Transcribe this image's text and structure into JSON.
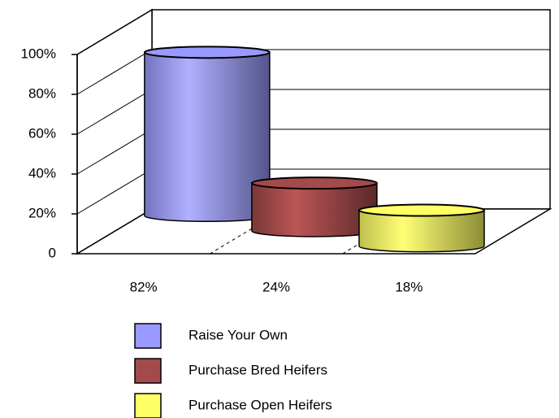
{
  "chart_data": {
    "type": "cylinder",
    "categories": [
      "82%",
      "24%",
      "18%"
    ],
    "series": [
      {
        "name": "Raise Your Own",
        "color": "#9999ff",
        "values": [
          82,
          null,
          null
        ]
      },
      {
        "name": "Purchase Bred Heifers",
        "color": "#a34a4a",
        "values": [
          null,
          24,
          null
        ]
      },
      {
        "name": "Purchase Open Heifers",
        "color": "#ffff66",
        "values": [
          null,
          null,
          18
        ]
      }
    ],
    "ylim": [
      0,
      100
    ],
    "yticks": [
      0,
      {
        "value": 20,
        "label": "20%"
      },
      {
        "value": 40,
        "label": "40%"
      },
      {
        "value": 60,
        "label": "60%"
      },
      {
        "value": 80,
        "label": "80%"
      },
      {
        "value": 100,
        "label": "100%"
      }
    ],
    "grid": true
  }
}
